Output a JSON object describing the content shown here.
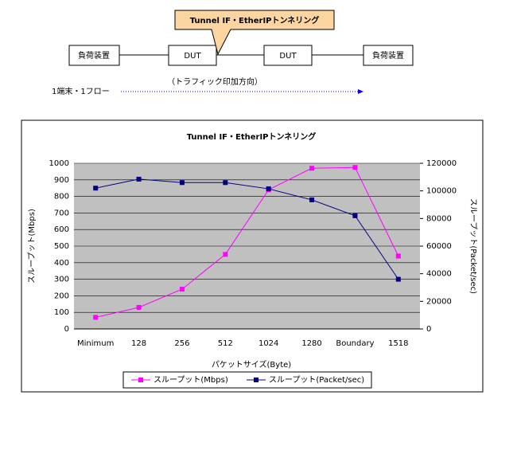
{
  "diagram": {
    "callout": "Tunnel IF・EtherIPトンネリング",
    "nodes": [
      {
        "label": "負荷装置"
      },
      {
        "label": "DUT"
      },
      {
        "label": "DUT"
      },
      {
        "label": "負荷装置"
      }
    ],
    "flow_label": "1端末・1フロー",
    "direction_label": "（トラフィック印加方向）"
  },
  "chart_data": {
    "type": "line",
    "title": "Tunnel IF・EtherIPトンネリング",
    "x_label": "パケットサイズ(Byte)",
    "y_label": "スループット(Mbps)",
    "y2_label": "スループット(Packet/sec)",
    "categories": [
      "Minimum",
      "128",
      "256",
      "512",
      "1024",
      "1280",
      "Boundary",
      "1518"
    ],
    "series": [
      {
        "name": "スループット(Mbps)",
        "color": "#ff00ff",
        "values": [
          70,
          130,
          240,
          450,
          840,
          970,
          975,
          440
        ]
      },
      {
        "name": "スループット(Packet/sec)",
        "color": "#000080",
        "axis": "y2",
        "values": [
          102000,
          108500,
          106000,
          106000,
          101500,
          93500,
          82000,
          36000
        ]
      }
    ],
    "ylim": [
      0,
      1000
    ],
    "yticks": [
      0,
      100,
      200,
      300,
      400,
      500,
      600,
      700,
      800,
      900,
      1000
    ],
    "y2lim": [
      0,
      120000
    ],
    "y2ticks": [
      0,
      20000,
      40000,
      60000,
      80000,
      100000,
      120000
    ],
    "grid": true,
    "legend": "bottom"
  }
}
